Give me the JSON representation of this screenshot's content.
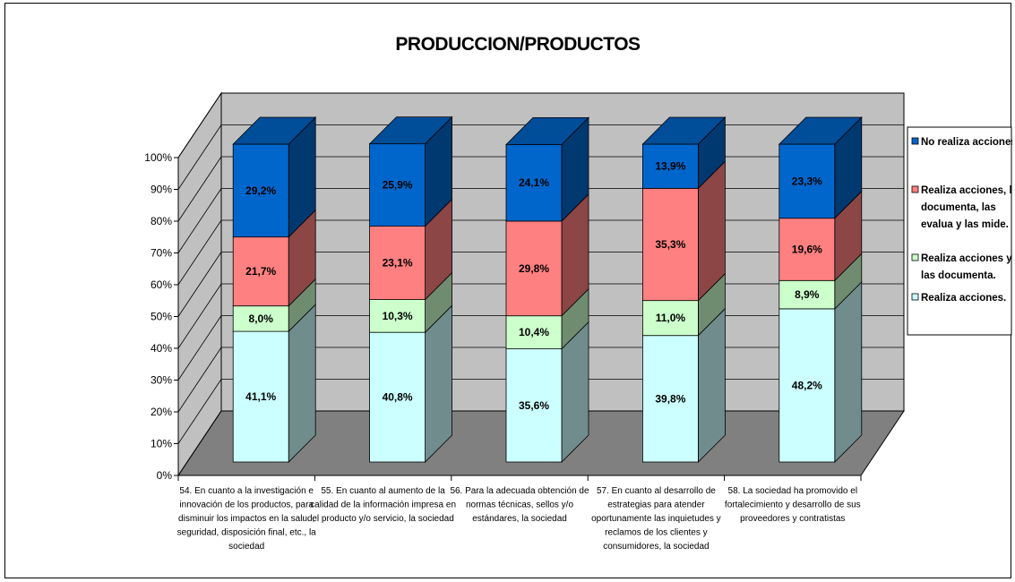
{
  "chart_data": {
    "type": "bar",
    "stacked": true,
    "three_d": true,
    "title": "PRODUCCION/PRODUCTOS",
    "y_ticks": [
      "0%",
      "10%",
      "20%",
      "30%",
      "40%",
      "50%",
      "60%",
      "70%",
      "80%",
      "90%",
      "100%"
    ],
    "ylim": [
      0,
      100
    ],
    "categories": [
      [
        "54. En cuanto a la investigación e",
        "innovación de los productos, para",
        "disminuir los impactos en la salud,",
        "seguridad, disposición final, etc., la",
        "sociedad"
      ],
      [
        "55. En cuanto al aumento de la",
        "calidad de la información impresa en",
        "el producto y/o servicio, la sociedad"
      ],
      [
        "56. Para la adecuada obtención de",
        "normas técnicas, sellos y/o",
        "estándares, la sociedad"
      ],
      [
        "57. En cuanto al desarrollo de",
        "estrategias para atender",
        "oportunamente las inquietudes y",
        "reclamos de los clientes y",
        "consumidores, la sociedad"
      ],
      [
        "58. La sociedad ha promovido el",
        "fortalecimiento y desarrollo de sus",
        "proveedores y contratistas"
      ]
    ],
    "series": [
      {
        "name": "Realiza acciones.",
        "color": "#CCFFFF",
        "values": [
          41.1,
          40.8,
          35.6,
          39.8,
          48.2
        ],
        "labels": [
          "41,1%",
          "40,8%",
          "35,6%",
          "39,8%",
          "48,2%"
        ]
      },
      {
        "name": "Realiza acciones y las documenta.",
        "color": "#CCFFCC",
        "values": [
          8.0,
          10.3,
          10.4,
          11.0,
          8.9
        ],
        "labels": [
          "8,0%",
          "10,3%",
          "10,4%",
          "11,0%",
          "8,9%"
        ]
      },
      {
        "name": "Realiza acciones, las documenta, las evalua y las mide.",
        "color": "#FF8080",
        "values": [
          21.7,
          23.1,
          29.8,
          35.3,
          19.6
        ],
        "labels": [
          "21,7%",
          "23,1%",
          "29,8%",
          "35,3%",
          "19,6%"
        ]
      },
      {
        "name": "No realiza acciones.",
        "color": "#0066CC",
        "values": [
          29.2,
          25.9,
          24.1,
          13.9,
          23.3
        ],
        "labels": [
          "29,2%",
          "25,9%",
          "24,1%",
          "13,9%",
          "23,3%"
        ]
      }
    ],
    "legend": {
      "position": "right",
      "entries": [
        {
          "lines": [
            "No realiza acciones."
          ],
          "color": "#0066CC"
        },
        {
          "lines": [
            "Realiza acciones, las",
            "documenta, las",
            "evalua y las mide."
          ],
          "color": "#FF8080"
        },
        {
          "lines": [
            "Realiza acciones y",
            "las documenta."
          ],
          "color": "#CCFFCC"
        },
        {
          "lines": [
            "Realiza acciones."
          ],
          "color": "#CCFFFF"
        }
      ]
    },
    "walls": {
      "back": "#C0C0C0",
      "floor": "#808080"
    },
    "grid": true
  }
}
